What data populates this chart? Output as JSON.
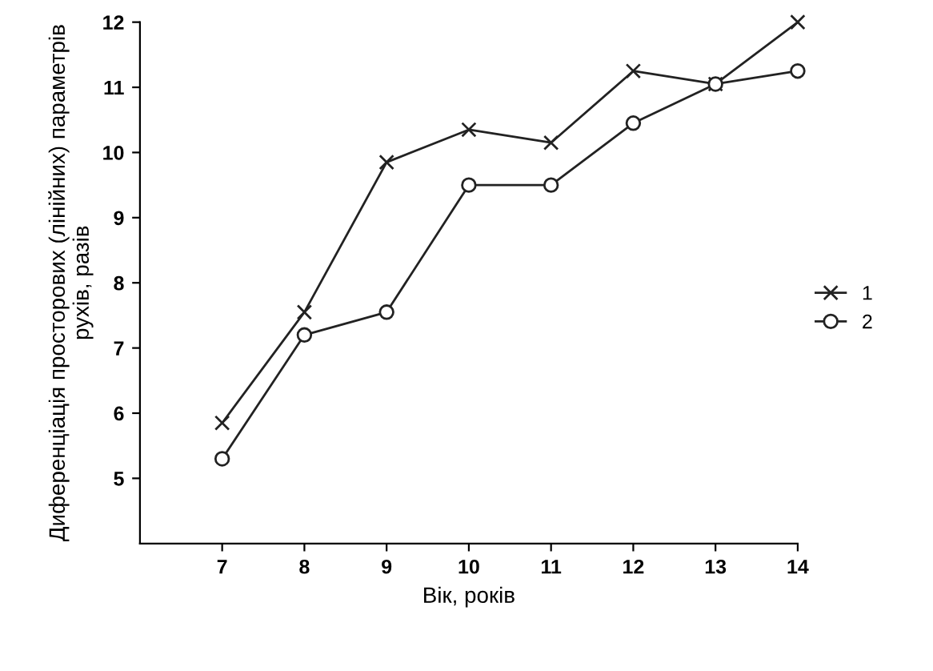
{
  "chart_data": {
    "type": "line",
    "xlabel": "Вік, років",
    "ylabel": "Диференціація просторових (лінійних) параметрів рухів, разів",
    "x": [
      7,
      8,
      9,
      10,
      11,
      12,
      13,
      14
    ],
    "series": [
      {
        "name": "1",
        "color": "#222222",
        "marker": "cross",
        "values": [
          5.85,
          7.55,
          9.85,
          10.35,
          10.15,
          11.25,
          11.05,
          12.0
        ]
      },
      {
        "name": "2",
        "color": "#222222",
        "marker": "circle",
        "values": [
          5.3,
          7.2,
          7.55,
          9.5,
          9.5,
          10.45,
          11.05,
          11.25
        ]
      }
    ],
    "xlim": [
      6,
      14
    ],
    "xticks": [
      7,
      8,
      9,
      10,
      11,
      12,
      13,
      14
    ],
    "ylim": [
      4,
      12
    ],
    "yticks": [
      5,
      6,
      7,
      8,
      9,
      10,
      11,
      12
    ],
    "grid": false,
    "legend": "right",
    "line_style": "solid"
  }
}
